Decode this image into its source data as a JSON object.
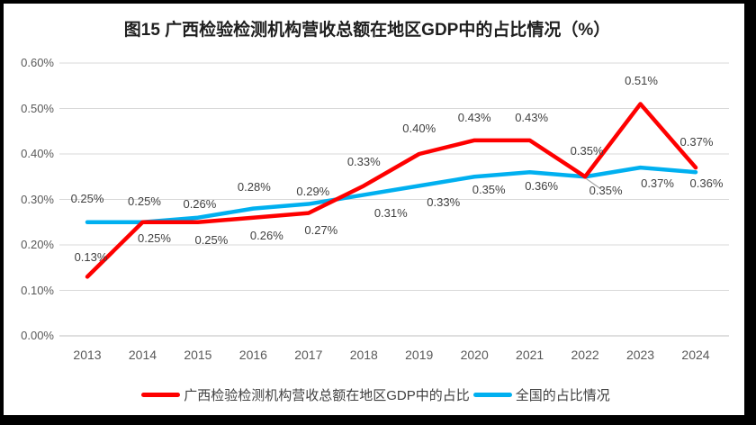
{
  "chart_data": {
    "type": "line",
    "title": "图15 广西检验检测机构营收总额在地区GDP中的占比情况（%）",
    "x": [
      "2013",
      "2014",
      "2015",
      "2016",
      "2017",
      "2018",
      "2019",
      "2020",
      "2021",
      "2022",
      "2023",
      "2024"
    ],
    "xlabel": "",
    "ylabel": "",
    "ylim": [
      0,
      0.6
    ],
    "ytick_values": [
      0,
      0.1,
      0.2,
      0.3,
      0.4,
      0.5,
      0.6
    ],
    "ytick_labels": [
      "0.00%",
      "0.10%",
      "0.20%",
      "0.30%",
      "0.40%",
      "0.50%",
      "0.60%"
    ],
    "grid": "horizontal-only",
    "gridline_color": "#D9D9D9",
    "axis_line_color": "#BFBFBF",
    "legend_position": "bottom",
    "series": [
      {
        "name": "广西检验检测机构营收总额在地区GDP中的占比",
        "color": "#FE0000",
        "values": [
          0.13,
          0.25,
          0.25,
          0.26,
          0.27,
          0.33,
          0.4,
          0.43,
          0.43,
          0.35,
          0.51,
          0.37
        ],
        "point_labels": [
          "0.13%",
          "0.25%",
          "0.25%",
          "0.26%",
          "0.27%",
          "0.33%",
          "0.40%",
          "0.43%",
          "0.43%",
          "0.35%",
          "0.51%",
          "0.37%"
        ]
      },
      {
        "name": "全国的占比情况",
        "color": "#00B0F0",
        "values": [
          0.25,
          0.25,
          0.26,
          0.28,
          0.29,
          0.31,
          0.33,
          0.35,
          0.36,
          0.35,
          0.37,
          0.36
        ],
        "point_labels": [
          "0.25%",
          "0.25%",
          "0.26%",
          "0.28%",
          "0.29%",
          "0.31%",
          "0.33%",
          "0.35%",
          "0.36%",
          "0.35%",
          "0.37%",
          "0.36%"
        ]
      }
    ],
    "annotations": {
      "leader_line": {
        "series_index": 0,
        "x": "2022",
        "color": "#A6A6A6"
      }
    }
  }
}
